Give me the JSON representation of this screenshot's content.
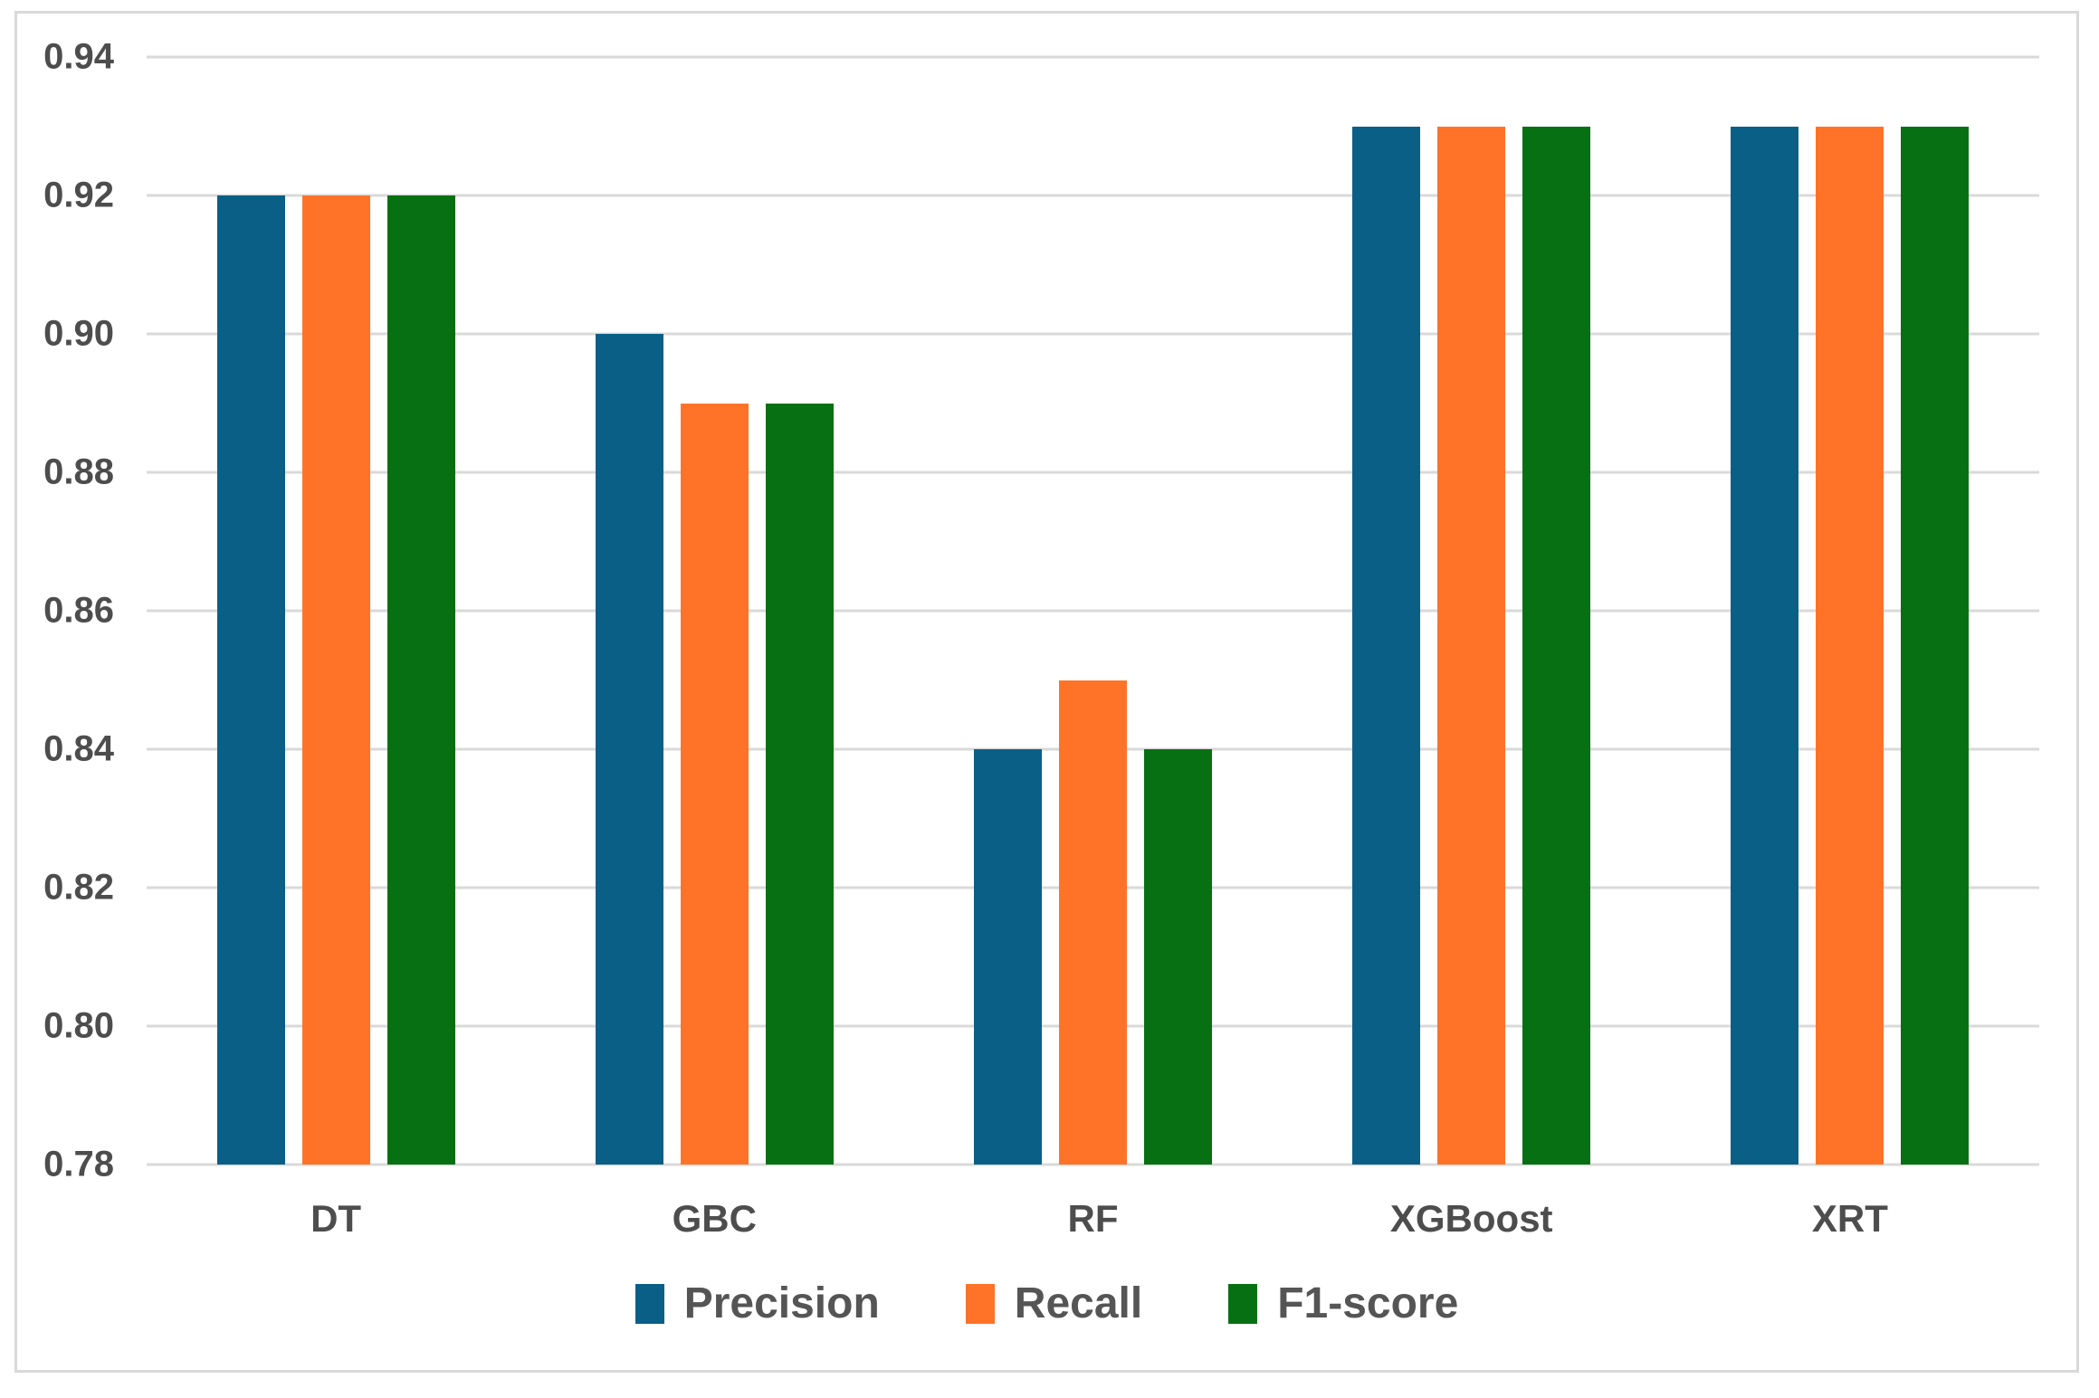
{
  "colors": {
    "precision": "#0A5F86",
    "recall": "#FF7329",
    "f1_score": "#077012",
    "gridline": "#D9D9D9",
    "figure_border": "#D9D9D9",
    "tick_text": "#4D4D4D",
    "legend_text": "#555555",
    "background": "#FFFFFF"
  },
  "chart_data": {
    "type": "bar",
    "title": "",
    "xlabel": "",
    "ylabel": "",
    "categories": [
      "DT",
      "GBC",
      "RF",
      "XGBoost",
      "XRT"
    ],
    "series": [
      {
        "name": "Precision",
        "color": "#0A5F86",
        "values": [
          0.92,
          0.9,
          0.84,
          0.93,
          0.93
        ]
      },
      {
        "name": "Recall",
        "color": "#FF7329",
        "values": [
          0.92,
          0.89,
          0.85,
          0.93,
          0.93
        ]
      },
      {
        "name": "F1-score",
        "color": "#077012",
        "values": [
          0.92,
          0.89,
          0.84,
          0.93,
          0.93
        ]
      }
    ],
    "ylim": [
      0.78,
      0.94
    ],
    "yticks": [
      0.94,
      0.92,
      0.9,
      0.88,
      0.86,
      0.84,
      0.82,
      0.8,
      0.78
    ],
    "ytick_format_decimals": 2,
    "grid": true,
    "legend_position": "bottom"
  }
}
